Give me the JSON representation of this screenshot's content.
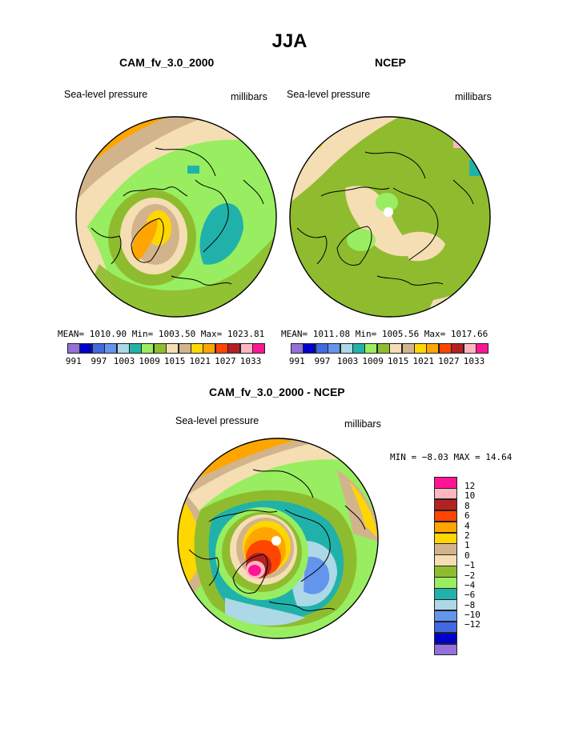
{
  "title": "JJA",
  "panels": {
    "model": {
      "title": "CAM_fv_3.0_2000",
      "field": "Sea-level pressure",
      "units": "millibars",
      "stats": "MEAN= 1010.90   Min= 1003.50   Max= 1023.81"
    },
    "obs": {
      "title": "NCEP",
      "field": "Sea-level pressure",
      "units": "millibars",
      "stats": "MEAN= 1011.08   Min= 1005.56   Max= 1017.66"
    },
    "diff": {
      "title": "CAM_fv_3.0_2000 - NCEP",
      "field": "Sea-level pressure",
      "units": "millibars",
      "stats": "MIN =   −8.03 MAX =  14.64"
    }
  },
  "chart_data": [
    {
      "type": "heatmap",
      "projection": "polar stereographic (north)",
      "title": "CAM_fv_3.0_2000",
      "subtitle": "Sea-level pressure",
      "units": "millibars",
      "mean": 1010.9,
      "min": 1003.5,
      "max": 1023.81,
      "levels": [
        991,
        994,
        997,
        1000,
        1003,
        1006,
        1009,
        1012,
        1015,
        1018,
        1021,
        1024,
        1027,
        1030,
        1033
      ],
      "tick_labels": [
        "991",
        "997",
        "1003",
        "1009",
        "1015",
        "1021",
        "1027",
        "1033"
      ],
      "colors": [
        "#9370db",
        "#0000cd",
        "#4169e1",
        "#6495ed",
        "#add8e6",
        "#20b2aa",
        "#98ee60",
        "#8fbc2f",
        "#f5deb3",
        "#d2b48c",
        "#ffd700",
        "#ffa500",
        "#ff4500",
        "#b22222",
        "#ffb6c1",
        "#ff1493"
      ]
    },
    {
      "type": "heatmap",
      "projection": "polar stereographic (north)",
      "title": "NCEP",
      "subtitle": "Sea-level pressure",
      "units": "millibars",
      "mean": 1011.08,
      "min": 1005.56,
      "max": 1017.66,
      "levels": [
        991,
        994,
        997,
        1000,
        1003,
        1006,
        1009,
        1012,
        1015,
        1018,
        1021,
        1024,
        1027,
        1030,
        1033
      ],
      "tick_labels": [
        "991",
        "997",
        "1003",
        "1009",
        "1015",
        "1021",
        "1027",
        "1033"
      ]
    },
    {
      "type": "heatmap",
      "projection": "polar stereographic (north)",
      "title": "CAM_fv_3.0_2000 - NCEP",
      "subtitle": "Sea-level pressure",
      "units": "millibars",
      "min": -8.03,
      "max": 14.64,
      "levels": [
        -12,
        -10,
        -8,
        -6,
        -4,
        -2,
        -1,
        0,
        1,
        2,
        4,
        6,
        8,
        10,
        12
      ],
      "tick_labels": [
        "12",
        "10",
        "8",
        "6",
        "4",
        "2",
        "1",
        "0",
        "−1",
        "−2",
        "−4",
        "−6",
        "−8",
        "−10",
        "−12"
      ],
      "colors_top_to_bottom": [
        "#ff1493",
        "#ffb6c1",
        "#b22222",
        "#ff4500",
        "#ffa500",
        "#ffd700",
        "#d2b48c",
        "#f5deb3",
        "#8fbc2f",
        "#98ee60",
        "#20b2aa",
        "#add8e6",
        "#6495ed",
        "#4169e1",
        "#0000cd",
        "#9370db"
      ]
    }
  ]
}
